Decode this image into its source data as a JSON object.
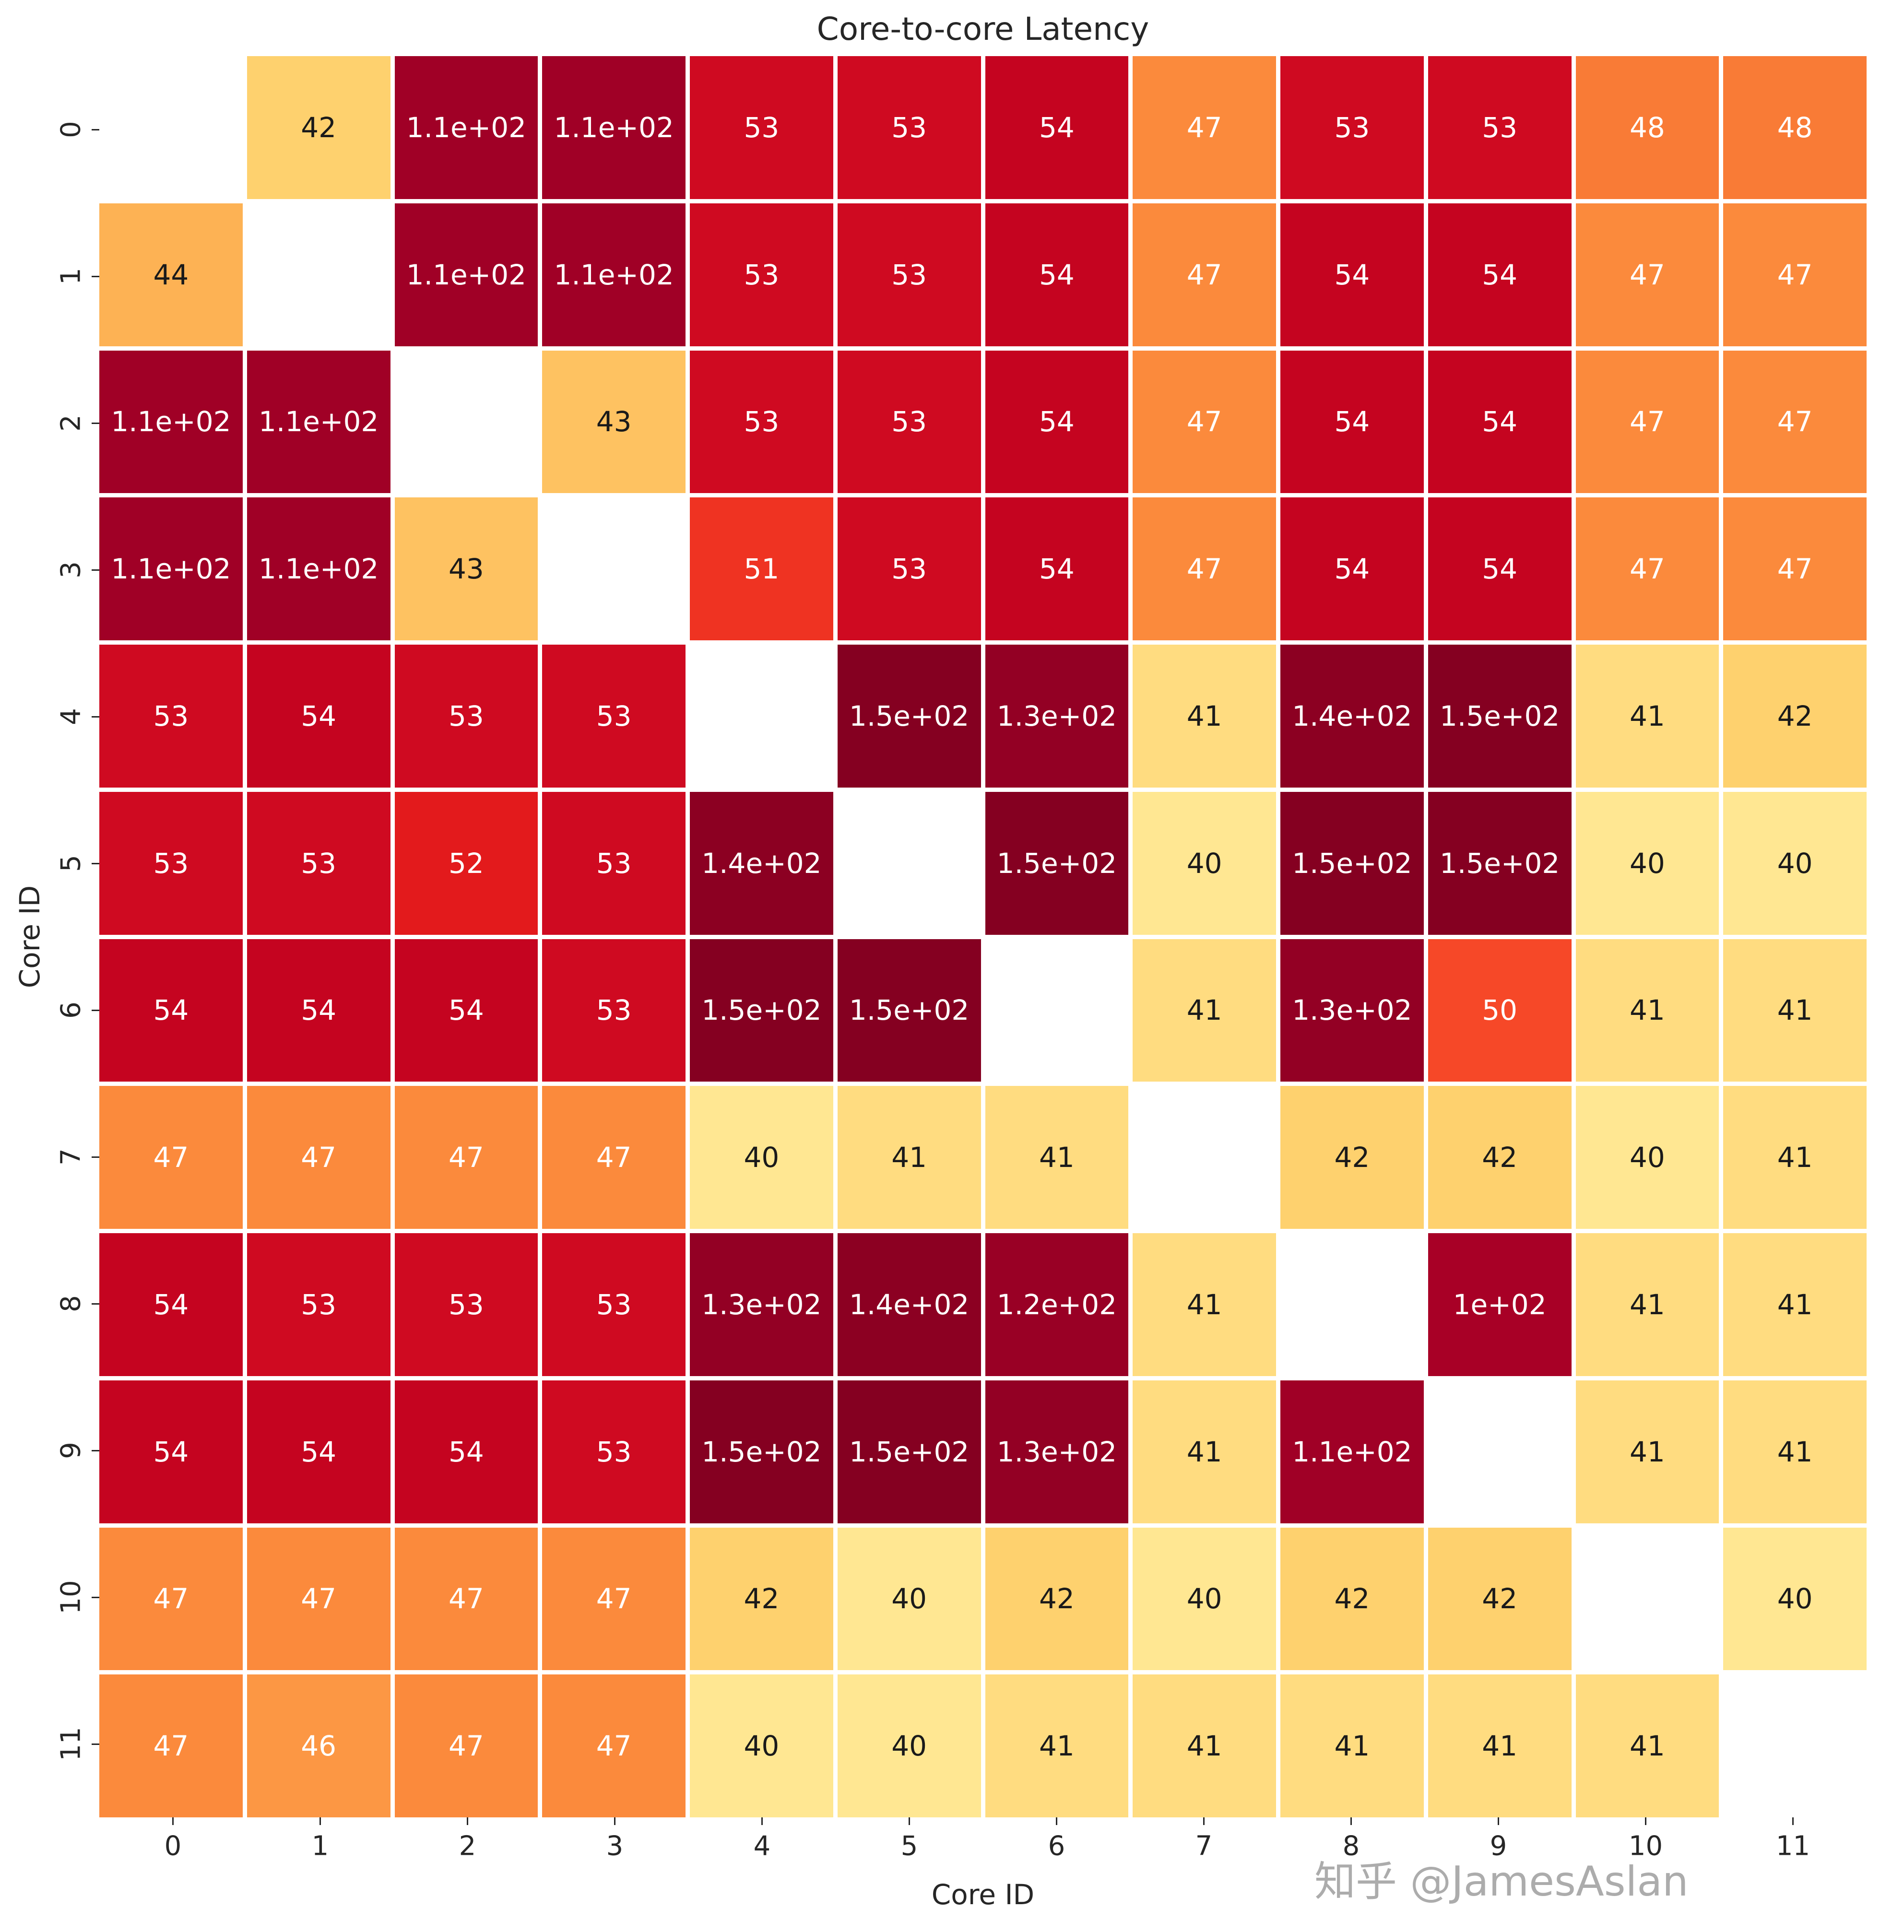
{
  "watermark": "知乎 @JamesAslan",
  "chart_data": {
    "type": "heatmap",
    "title": "Core-to-core Latency",
    "xlabel": "Core ID",
    "ylabel": "Core ID",
    "x_tick_labels": [
      "0",
      "1",
      "2",
      "3",
      "4",
      "5",
      "6",
      "7",
      "8",
      "9",
      "10",
      "11"
    ],
    "y_tick_labels": [
      "0",
      "1",
      "2",
      "3",
      "4",
      "5",
      "6",
      "7",
      "8",
      "9",
      "10",
      "11"
    ],
    "matrix": [
      [
        null,
        "42",
        "1.1e+02",
        "1.1e+02",
        "53",
        "53",
        "54",
        "47",
        "53",
        "53",
        "48",
        "48"
      ],
      [
        "44",
        null,
        "1.1e+02",
        "1.1e+02",
        "53",
        "53",
        "54",
        "47",
        "54",
        "54",
        "47",
        "47"
      ],
      [
        "1.1e+02",
        "1.1e+02",
        null,
        "43",
        "53",
        "53",
        "54",
        "47",
        "54",
        "54",
        "47",
        "47"
      ],
      [
        "1.1e+02",
        "1.1e+02",
        "43",
        null,
        "51",
        "53",
        "54",
        "47",
        "54",
        "54",
        "47",
        "47"
      ],
      [
        "53",
        "54",
        "53",
        "53",
        null,
        "1.5e+02",
        "1.3e+02",
        "41",
        "1.4e+02",
        "1.5e+02",
        "41",
        "42"
      ],
      [
        "53",
        "53",
        "52",
        "53",
        "1.4e+02",
        null,
        "1.5e+02",
        "40",
        "1.5e+02",
        "1.5e+02",
        "40",
        "40"
      ],
      [
        "54",
        "54",
        "54",
        "53",
        "1.5e+02",
        "1.5e+02",
        null,
        "41",
        "1.3e+02",
        "50",
        "41",
        "41"
      ],
      [
        "47",
        "47",
        "47",
        "47",
        "40",
        "41",
        "41",
        null,
        "42",
        "42",
        "40",
        "41"
      ],
      [
        "54",
        "53",
        "53",
        "53",
        "1.3e+02",
        "1.4e+02",
        "1.2e+02",
        "41",
        null,
        "1e+02",
        "41",
        "41"
      ],
      [
        "54",
        "54",
        "54",
        "53",
        "1.5e+02",
        "1.5e+02",
        "1.3e+02",
        "41",
        "1.1e+02",
        null,
        "41",
        "41"
      ],
      [
        "47",
        "47",
        "47",
        "47",
        "42",
        "40",
        "42",
        "40",
        "42",
        "42",
        null,
        "40"
      ],
      [
        "47",
        "46",
        "47",
        "47",
        "40",
        "40",
        "41",
        "41",
        "41",
        "41",
        "41",
        null
      ]
    ],
    "value_range": [
      40,
      150
    ],
    "colormap": "YlOrRd-like",
    "colormap_stops": [
      [
        40,
        "#ffe792"
      ],
      [
        42,
        "#fed16e"
      ],
      [
        44,
        "#fdb254"
      ],
      [
        47,
        "#fb8a3c"
      ],
      [
        48,
        "#f97b36"
      ],
      [
        50,
        "#f64828"
      ],
      [
        51,
        "#ef3322"
      ],
      [
        52,
        "#e31a1c"
      ],
      [
        53,
        "#cf0a21"
      ],
      [
        54,
        "#c50420"
      ],
      [
        100,
        "#a80026"
      ],
      [
        110,
        "#a00026"
      ],
      [
        150,
        "#850021"
      ]
    ],
    "annotation_white_text_min": 46,
    "annotation_dark_text_color": "#1a1a1a",
    "empty_diagonal": true,
    "grid_lines": "white",
    "legend": "none"
  }
}
